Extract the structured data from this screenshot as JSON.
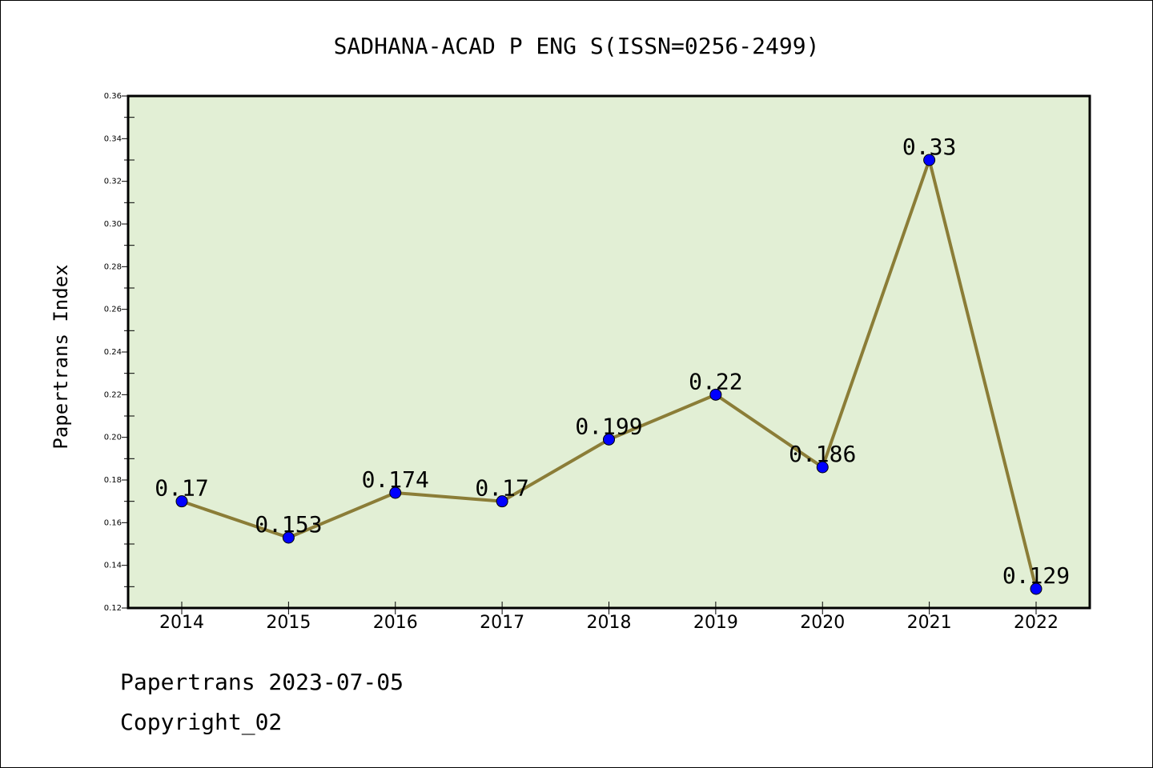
{
  "chart_data": {
    "type": "line",
    "title": "SADHANA-ACAD P ENG S(ISSN=0256-2499)",
    "xlabel": "",
    "ylabel": "Papertrans Index",
    "categories": [
      "2014",
      "2015",
      "2016",
      "2017",
      "2018",
      "2019",
      "2020",
      "2021",
      "2022"
    ],
    "series": [
      {
        "values": [
          0.17,
          0.153,
          0.174,
          0.17,
          0.199,
          0.22,
          0.186,
          0.33,
          0.129
        ],
        "labels": [
          "0.17",
          "0.153",
          "0.174",
          "0.17",
          "0.199",
          "0.22",
          "0.186",
          "0.33",
          "0.129"
        ]
      }
    ],
    "ylim": [
      0.12,
      0.36
    ],
    "yticks": [
      "0.12",
      "0.14",
      "0.16",
      "0.18",
      "0.20",
      "0.22",
      "0.24",
      "0.26",
      "0.28",
      "0.30",
      "0.32",
      "0.34",
      "0.36"
    ],
    "grid": false,
    "legend": "none",
    "colors": {
      "plot_background": "#e2efd5",
      "line": "#8b7d37",
      "marker": "#0000ff",
      "axes": "#000000"
    }
  },
  "footer": {
    "date_text": "Papertrans 2023-07-05",
    "copyright_text": "Copyright_02"
  }
}
